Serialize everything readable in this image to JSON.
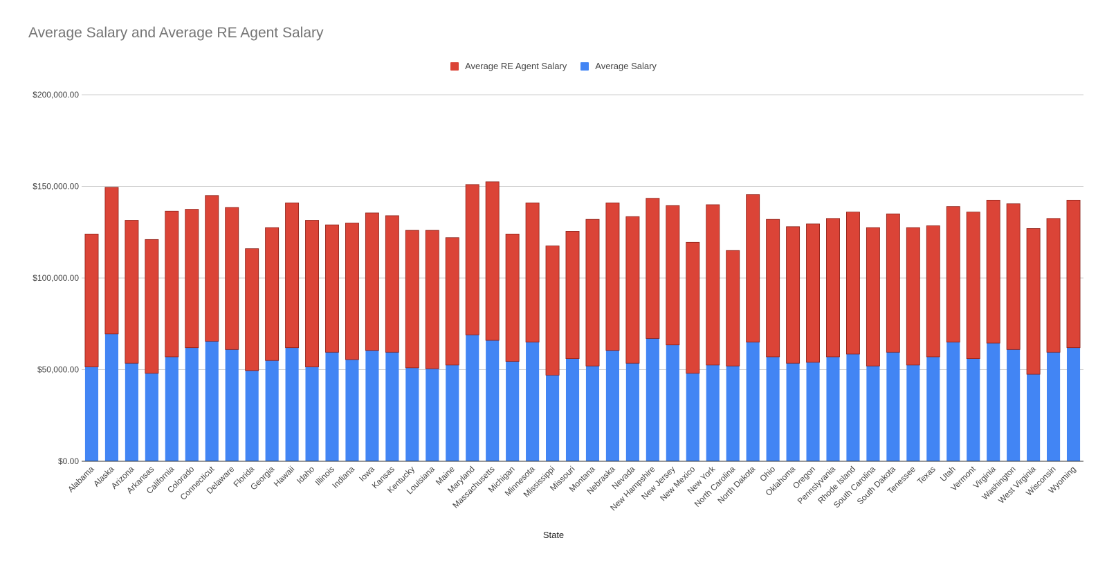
{
  "chart_data": {
    "type": "bar",
    "stacked": true,
    "title": "Average Salary and Average RE Agent Salary",
    "xlabel": "State",
    "ylabel": "",
    "ylim": [
      0,
      200000
    ],
    "yticks": [
      "$0.00",
      "$50,000.00",
      "$100,000.00",
      "$150,000.00",
      "$200,000.00"
    ],
    "ytick_values": [
      0,
      50000,
      100000,
      150000,
      200000
    ],
    "grid": true,
    "legend_position": "top",
    "legend": [
      "Average RE Agent Salary",
      "Average Salary"
    ],
    "categories": [
      "Alabama",
      "Alaska",
      "Arizona",
      "Arkansas",
      "California",
      "Colorado",
      "Connecticut",
      "Delaware",
      "Florida",
      "Georgia",
      "Hawaii",
      "Idaho",
      "Illinois",
      "Indiana",
      "Iowa",
      "Kansas",
      "Kentucky",
      "Louisiana",
      "Maine",
      "Maryland",
      "Massachusetts",
      "Michigan",
      "Minnesota",
      "Mississippi",
      "Missouri",
      "Montana",
      "Nebraska",
      "Nevada",
      "New Hampshire",
      "New Jersey",
      "New Mexico",
      "New York",
      "North Carolina",
      "North Dakota",
      "Ohio",
      "Oklahoma",
      "Oregon",
      "Pennslyvania",
      "Rhode Island",
      "South Carolina",
      "South Dakota",
      "Tenessee",
      "Texas",
      "Utah",
      "Vermont",
      "Virginia",
      "Washington",
      "West Virginia",
      "Wisconsin",
      "Wyoming"
    ],
    "series": [
      {
        "name": "Average Salary",
        "color": "#4285f4",
        "values": [
          51500,
          69500,
          53500,
          48000,
          57000,
          62000,
          65500,
          61000,
          49500,
          55000,
          62000,
          51500,
          59500,
          55500,
          60500,
          59500,
          51000,
          50500,
          52500,
          69000,
          66000,
          54500,
          65000,
          47000,
          56000,
          52000,
          60500,
          53500,
          67000,
          63500,
          48000,
          52500,
          52000,
          65000,
          57000,
          53500,
          54000,
          57000,
          58500,
          52000,
          59500,
          52500,
          57000,
          65000,
          56000,
          64500,
          61000,
          47500,
          59500,
          62000
        ]
      },
      {
        "name": "Average RE Agent Salary",
        "color": "#db4437",
        "values": [
          72500,
          80000,
          78000,
          73000,
          79500,
          75500,
          79500,
          77500,
          66500,
          72500,
          79000,
          80000,
          69500,
          74500,
          75000,
          74500,
          75000,
          75500,
          69500,
          82000,
          86500,
          69500,
          76000,
          70500,
          69500,
          80000,
          80500,
          80000,
          76500,
          76000,
          71500,
          87500,
          63000,
          80500,
          75000,
          74500,
          75500,
          75500,
          77500,
          75500,
          75500,
          75000,
          71500,
          74000,
          80000,
          78000,
          79500,
          79500,
          73000,
          80500
        ]
      }
    ]
  }
}
